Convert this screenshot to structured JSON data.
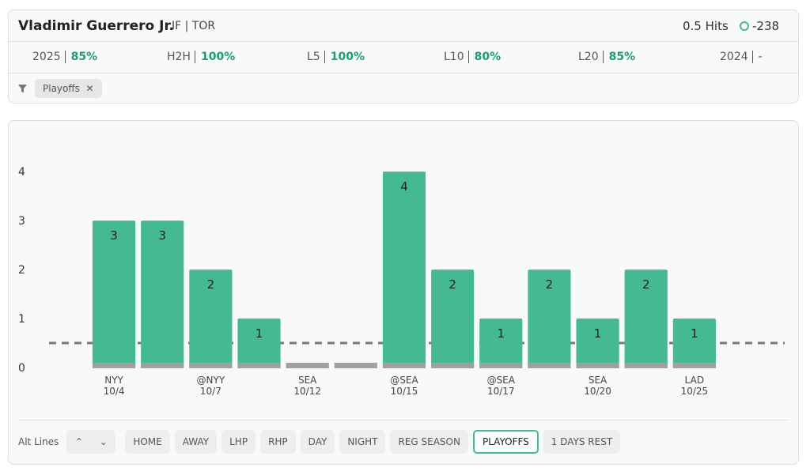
{
  "header": {
    "player": "Vladimir Guerrero Jr.",
    "info": "IF | TOR",
    "prop": "0.5 Hits",
    "odds": "-238"
  },
  "stats": [
    {
      "label": "2025",
      "value": "85%"
    },
    {
      "label": "H2H",
      "value": "100%"
    },
    {
      "label": "L5",
      "value": "100%"
    },
    {
      "label": "L10",
      "value": "80%"
    },
    {
      "label": "L20",
      "value": "85%"
    },
    {
      "label": "2024",
      "value": "-"
    }
  ],
  "filter": {
    "chip": "Playoffs"
  },
  "chart_data": {
    "type": "bar",
    "opponents": [
      "NYY",
      null,
      "@NYY",
      null,
      "SEA",
      null,
      "@SEA",
      null,
      "@SEA",
      null,
      "SEA",
      null,
      "LAD"
    ],
    "dates": [
      "10/4",
      null,
      "10/7",
      null,
      "10/12",
      null,
      "10/15",
      null,
      "10/17",
      null,
      "10/20",
      null,
      "10/25"
    ],
    "values": [
      3,
      3,
      2,
      1,
      0,
      0,
      4,
      2,
      1,
      2,
      1,
      2,
      1
    ],
    "color": "#45b994",
    "line_value": 0.5,
    "ylim": [
      0,
      4.6
    ],
    "yticks": [
      0,
      1,
      2,
      3,
      4
    ]
  },
  "controls": {
    "alt_lines": "Alt Lines",
    "buttons": [
      "HOME",
      "AWAY",
      "LHP",
      "RHP",
      "DAY",
      "NIGHT",
      "REG SEASON",
      "PLAYOFFS",
      "1 DAYS REST"
    ],
    "active": "PLAYOFFS"
  }
}
